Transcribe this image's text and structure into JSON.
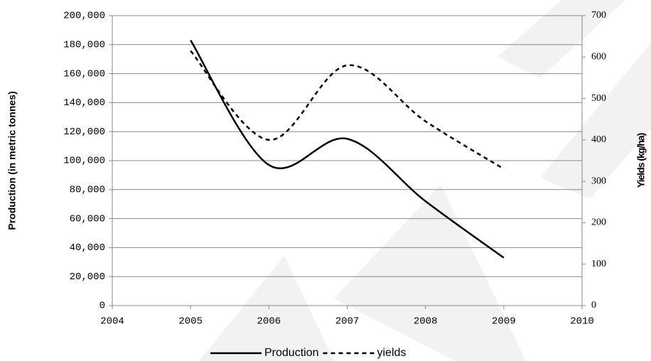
{
  "chart_data": {
    "type": "line",
    "x": [
      2005,
      2006,
      2007,
      2008,
      2009
    ],
    "series": [
      {
        "name": "Production",
        "color": "#000000",
        "dash": "solid",
        "values": [
          183000,
          97000,
          115000,
          72000,
          33000
        ]
      },
      {
        "name": "yields",
        "color": "#000000",
        "dash": "dashed",
        "axis": "y2",
        "values": [
          615,
          400,
          580,
          445,
          330
        ]
      }
    ],
    "ylabel": "Production (in metric tonnes)",
    "y2label": "Yields (kg/ha)",
    "xlim": [
      2004,
      2010
    ],
    "xticks": [
      2004,
      2005,
      2006,
      2007,
      2008,
      2009,
      2010
    ],
    "ylim": [
      0,
      200000
    ],
    "yticks": [
      0,
      {
        "value": 20000,
        "label": "20,000"
      },
      {
        "value": 40000,
        "label": "40,000"
      },
      {
        "value": 60000,
        "label": "60,000"
      },
      {
        "value": 80000,
        "label": "80,000"
      },
      {
        "value": 100000,
        "label": "100,000"
      },
      {
        "value": 120000,
        "label": "120,000"
      },
      {
        "value": 140000,
        "label": "140,000"
      },
      {
        "value": 160000,
        "label": "160,000"
      },
      {
        "value": 180000,
        "label": "180,000"
      },
      {
        "value": 200000,
        "label": "200,000"
      }
    ],
    "y2lim": [
      0,
      700
    ],
    "y2ticks": [
      0,
      100,
      200,
      300,
      400,
      500,
      600,
      700
    ],
    "grid": true,
    "legend": "bottom"
  }
}
